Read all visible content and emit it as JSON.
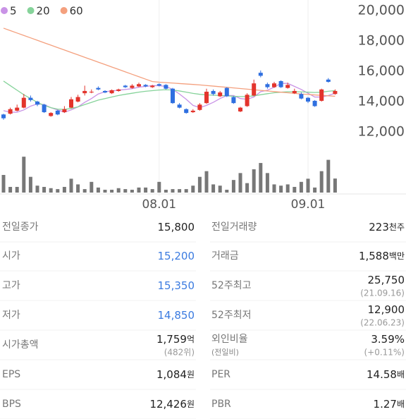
{
  "chart_data": {
    "type": "candlestick",
    "legend": [
      {
        "name": "5",
        "color": "#c993e6"
      },
      {
        "name": "20",
        "color": "#86d39a"
      },
      {
        "name": "60",
        "color": "#f4a07e"
      }
    ],
    "categories": [
      null,
      null,
      null,
      null,
      null,
      null,
      null,
      null,
      null,
      null,
      null,
      null,
      null,
      null,
      null,
      null,
      null,
      null,
      null,
      null,
      null,
      null,
      null,
      "08.01",
      null,
      null,
      null,
      null,
      null,
      null,
      null,
      null,
      null,
      null,
      null,
      null,
      null,
      null,
      null,
      null,
      null,
      null,
      null,
      null,
      null,
      "09.01",
      null,
      null,
      null,
      null
    ],
    "open": [
      13150,
      13200,
      13400,
      13600,
      14250,
      14000,
      13800,
      13050,
      13400,
      13300,
      13600,
      14000,
      14550,
      14600,
      14900,
      14700,
      14550,
      14700,
      15050,
      14900,
      15000,
      15100,
      14950,
      15150,
      15100,
      14850,
      13800,
      13500,
      13300,
      13450,
      13900,
      14700,
      14350,
      14900,
      14300,
      13350,
      13700,
      14400,
      15900,
      15150,
      14950,
      15350,
      14900,
      14550,
      14500,
      14250,
      14050,
      14050,
      15450,
      14500
    ],
    "high": [
      13200,
      13600,
      13800,
      14500,
      14400,
      14050,
      13850,
      13300,
      13450,
      13700,
      14300,
      14450,
      15050,
      14800,
      15000,
      14750,
      14800,
      14850,
      15100,
      15150,
      15250,
      15150,
      15100,
      15200,
      15150,
      14900,
      13900,
      13550,
      13500,
      13900,
      14850,
      14800,
      14700,
      14950,
      14350,
      13650,
      14550,
      15450,
      16050,
      15250,
      15300,
      15400,
      15250,
      14850,
      14600,
      14300,
      14100,
      14850,
      15550,
      14800
    ],
    "low": [
      12800,
      13150,
      13350,
      13550,
      14000,
      13700,
      13250,
      13000,
      13100,
      13250,
      13550,
      13950,
      14400,
      14550,
      14750,
      14550,
      14500,
      14650,
      14900,
      14850,
      14950,
      14950,
      14900,
      15000,
      14800,
      13850,
      13550,
      13200,
      13250,
      13400,
      13850,
      14400,
      14300,
      14300,
      13850,
      13300,
      13650,
      14350,
      15600,
      14850,
      14900,
      14900,
      14850,
      14500,
      14150,
      13900,
      13650,
      14000,
      15250,
      14450
    ],
    "close": [
      12900,
      13500,
      13600,
      14250,
      14100,
      13800,
      13300,
      13250,
      13150,
      13500,
      14150,
      14300,
      14700,
      14650,
      14800,
      14600,
      14750,
      14800,
      14950,
      15050,
      15150,
      15000,
      15050,
      15050,
      14850,
      13900,
      13600,
      13250,
      13400,
      13800,
      14650,
      14500,
      14600,
      14350,
      13900,
      13600,
      14450,
      15200,
      15700,
      14950,
      15200,
      14950,
      15100,
      14700,
      14200,
      14000,
      13700,
      14800,
      15300,
      14700
    ],
    "up_color": "#e3342c",
    "down_color": "#2f6fe0",
    "series": [
      {
        "name": "5",
        "color": "#c993e6",
        "values": [
          13400,
          13300,
          13300,
          13450,
          13700,
          13850,
          13800,
          13600,
          13450,
          13300,
          13450,
          13650,
          13950,
          14200,
          14500,
          14650,
          14700,
          14750,
          14800,
          14850,
          14950,
          15000,
          15050,
          15050,
          15000,
          14800,
          14500,
          14150,
          13750,
          13600,
          13750,
          13950,
          14200,
          14400,
          14400,
          14200,
          14150,
          14300,
          14650,
          14750,
          14950,
          15200,
          15200,
          15000,
          14800,
          14550,
          14300,
          14300,
          14400,
          14550
        ]
      },
      {
        "name": "20",
        "color": "#86d39a",
        "values": [
          15350,
          15050,
          14750,
          14450,
          14200,
          13950,
          13750,
          13600,
          13500,
          13480,
          13550,
          13650,
          13800,
          13950,
          14100,
          14200,
          14300,
          14400,
          14480,
          14550,
          14620,
          14680,
          14720,
          14760,
          14780,
          14760,
          14700,
          14620,
          14540,
          14480,
          14440,
          14420,
          14400,
          14380,
          14350,
          14330,
          14330,
          14380,
          14450,
          14520,
          14580,
          14620,
          14650,
          14650,
          14640,
          14620,
          14600,
          14620,
          14680,
          14720
        ]
      },
      {
        "name": "60",
        "color": "#f4a07e",
        "values": [
          18840,
          18680,
          18520,
          18360,
          18200,
          18040,
          17880,
          17720,
          17560,
          17400,
          17240,
          17080,
          16920,
          16760,
          16600,
          16440,
          16280,
          16120,
          15960,
          15800,
          15640,
          15480,
          15320,
          15280,
          15250,
          15220,
          15190,
          15160,
          15130,
          15100,
          15060,
          15020,
          14980,
          14940,
          14900,
          14860,
          14820,
          14780,
          14740,
          14700,
          14660,
          14620,
          14580,
          14540,
          14500,
          14470,
          14440,
          14410,
          14380,
          14350
        ]
      }
    ],
    "ylim": [
      11500,
      20000
    ],
    "yticks": [
      {
        "value": 20000,
        "label": "20,000"
      },
      {
        "value": 18000,
        "label": "18,000"
      },
      {
        "value": 16000,
        "label": "16,000"
      },
      {
        "value": 14000,
        "label": "14,000"
      },
      {
        "value": 12000,
        "label": "12,000"
      }
    ],
    "volume": [
      280,
      90,
      90,
      570,
      250,
      110,
      90,
      70,
      55,
      90,
      220,
      130,
      55,
      170,
      80,
      45,
      45,
      70,
      55,
      45,
      80,
      80,
      55,
      170,
      45,
      55,
      55,
      55,
      110,
      250,
      340,
      130,
      110,
      45,
      200,
      310,
      150,
      370,
      470,
      310,
      130,
      110,
      130,
      90,
      170,
      220,
      80,
      340,
      520,
      223
    ],
    "volume_color": "#777777",
    "volume_ylim": [
      0,
      650
    ]
  },
  "table": {
    "rows": [
      [
        {
          "label": "전일종가",
          "value": "15,800"
        },
        {
          "label": "전일거래량",
          "value": "223",
          "unit": "천주"
        }
      ],
      [
        {
          "label": "시가",
          "value": "15,200",
          "color": "#3b7be0"
        },
        {
          "label": "거래금",
          "value": "1,588",
          "unit": "백만"
        }
      ],
      [
        {
          "label": "고가",
          "value": "15,350",
          "color": "#3b7be0"
        },
        {
          "label": "52주최고",
          "value": "25,750",
          "sub": "(21.09.16)"
        }
      ],
      [
        {
          "label": "저가",
          "value": "14,850",
          "color": "#3b7be0"
        },
        {
          "label": "52주최저",
          "value": "12,900",
          "sub": "(22.06.23)"
        }
      ],
      [
        {
          "label": "시가총액",
          "value": "1,759",
          "unit": "억",
          "sub": "(482위)"
        },
        {
          "label": "외인비율",
          "label_sub": "(전일비)",
          "value": "3.59%",
          "sub": "(+0.11%)"
        }
      ],
      [
        {
          "label": "EPS",
          "value": "1,084",
          "unit": "원"
        },
        {
          "label": "PER",
          "value": "14.58",
          "unit": "배"
        }
      ],
      [
        {
          "label": "BPS",
          "value": "12,426",
          "unit": "원"
        },
        {
          "label": "PBR",
          "value": "1.27",
          "unit": "배"
        }
      ]
    ]
  }
}
